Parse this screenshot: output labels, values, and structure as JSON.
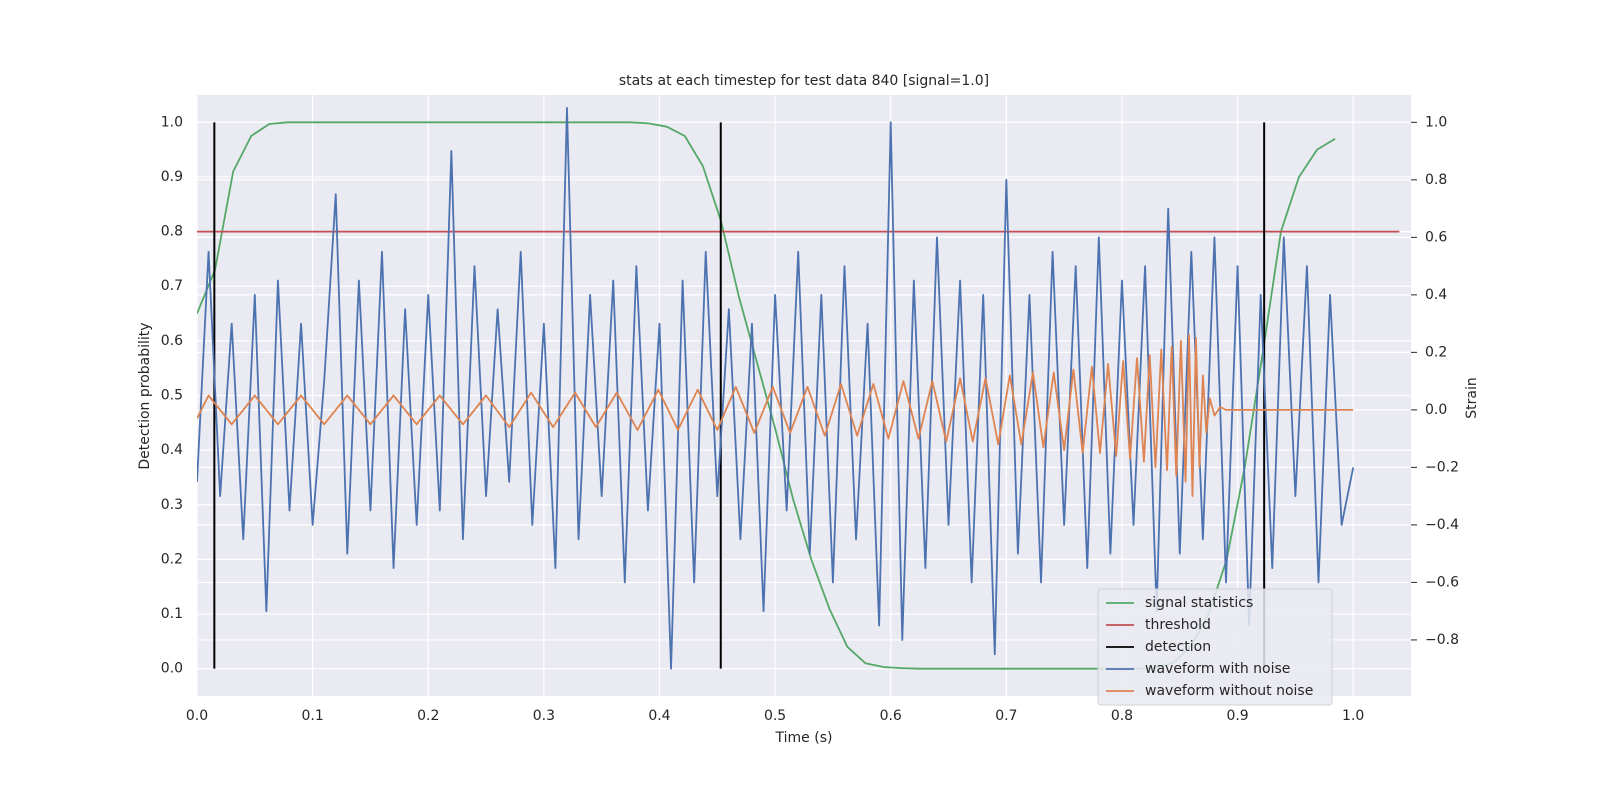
{
  "chart_data": {
    "type": "line",
    "title": "stats at each timestep for test data 840 [signal=1.0]",
    "xlabel": "Time (s)",
    "ylabel": "Detection probability",
    "y2label": "Strain",
    "xlim": [
      0,
      1.05
    ],
    "xticks": [
      {
        "value": 0,
        "label": "0.0"
      },
      0.1,
      0.2,
      0.3,
      0.4,
      0.5,
      0.6,
      0.7,
      0.8,
      0.9,
      {
        "value": 1,
        "label": "1.0"
      }
    ],
    "ylim": [
      -0.05,
      1.05
    ],
    "yticks": [
      {
        "value": 0,
        "label": "0.0"
      },
      0.1,
      0.2,
      0.3,
      0.4,
      0.5,
      0.6,
      0.7,
      0.8,
      0.9,
      {
        "value": 1,
        "label": "1.0"
      }
    ],
    "y2lim": [
      -0.995,
      1.095
    ],
    "y2ticks": [
      {
        "value": -0.8,
        "label": "−0.8"
      },
      {
        "value": -0.6,
        "label": "−0.6"
      },
      {
        "value": -0.4,
        "label": "−0.4"
      },
      {
        "value": -0.2,
        "label": "−0.2"
      },
      {
        "value": 0,
        "label": "0.0"
      },
      0.2,
      0.4,
      0.6,
      0.8,
      {
        "value": 1,
        "label": "1.0"
      }
    ],
    "grid": true,
    "legend": "lower right",
    "series": [
      {
        "name": "signal statistics",
        "color": "#55a868",
        "x": [
          0,
          0.0156,
          0.0313,
          0.0469,
          0.0625,
          0.0781,
          0.0938,
          0.1094,
          0.125,
          0.1406,
          0.1563,
          0.1719,
          0.1875,
          0.2031,
          0.2188,
          0.2344,
          0.25,
          0.2656,
          0.2813,
          0.2969,
          0.3125,
          0.3281,
          0.3438,
          0.3594,
          0.375,
          0.3906,
          0.4063,
          0.4219,
          0.4375,
          0.4531,
          0.4688,
          0.4844,
          0.5,
          0.5156,
          0.5313,
          0.5469,
          0.5625,
          0.5781,
          0.5938,
          0.6094,
          0.625,
          0.6406,
          0.6563,
          0.6719,
          0.6875,
          0.7031,
          0.7188,
          0.7344,
          0.75,
          0.7656,
          0.7813,
          0.7969,
          0.8125,
          0.8281,
          0.8438,
          0.8594,
          0.875,
          0.8906,
          0.9063,
          0.9219,
          0.9375,
          0.9531,
          0.9688,
          0.9844
        ],
        "values": [
          0.65,
          0.73,
          0.91,
          0.975,
          0.997,
          1,
          1,
          1,
          1,
          1,
          1,
          1,
          1,
          1,
          1,
          1,
          1,
          1,
          1,
          1,
          1,
          1,
          1,
          1,
          1,
          0.998,
          0.992,
          0.975,
          0.92,
          0.82,
          0.68,
          0.56,
          0.44,
          0.31,
          0.2,
          0.11,
          0.04,
          0.01,
          0.003,
          0.001,
          0,
          0,
          0,
          0,
          0,
          0,
          0,
          0,
          0,
          0,
          0,
          0,
          0,
          0.002,
          0.01,
          0.04,
          0.1,
          0.2,
          0.37,
          0.58,
          0.8,
          0.9,
          0.95,
          0.97
        ]
      },
      {
        "name": "threshold",
        "color": "#c44e52",
        "x": [
          0,
          1.04
        ],
        "values": [
          0.8,
          0.8
        ]
      },
      {
        "name": "detection",
        "color": "#000000",
        "kind": "vlines",
        "x": [
          0.015,
          0.453,
          0.923
        ],
        "ymin": [
          0,
          0,
          0
        ],
        "ymax": [
          1,
          1,
          1
        ]
      },
      {
        "name": "waveform with noise",
        "color": "#4c72b0",
        "axis": "y2",
        "x": [
          0,
          0.01,
          0.02,
          0.03,
          0.04,
          0.05,
          0.06,
          0.07,
          0.08,
          0.09,
          0.1,
          0.11,
          0.12,
          0.13,
          0.14,
          0.15,
          0.16,
          0.17,
          0.18,
          0.19,
          0.2,
          0.21,
          0.22,
          0.23,
          0.24,
          0.25,
          0.26,
          0.27,
          0.28,
          0.29,
          0.3,
          0.31,
          0.32,
          0.33,
          0.34,
          0.35,
          0.36,
          0.37,
          0.38,
          0.39,
          0.4,
          0.41,
          0.42,
          0.43,
          0.44,
          0.45,
          0.46,
          0.47,
          0.48,
          0.49,
          0.5,
          0.51,
          0.52,
          0.53,
          0.54,
          0.55,
          0.56,
          0.57,
          0.58,
          0.59,
          0.6,
          0.61,
          0.62,
          0.63,
          0.64,
          0.65,
          0.66,
          0.67,
          0.68,
          0.69,
          0.7,
          0.71,
          0.72,
          0.73,
          0.74,
          0.75,
          0.76,
          0.77,
          0.78,
          0.79,
          0.8,
          0.81,
          0.82,
          0.83,
          0.84,
          0.85,
          0.86,
          0.87,
          0.88,
          0.89,
          0.9,
          0.91,
          0.92,
          0.93,
          0.94,
          0.95,
          0.96,
          0.97,
          0.98,
          0.99,
          1
        ],
        "values": [
          -0.25,
          0.55,
          -0.3,
          0.3,
          -0.45,
          0.4,
          -0.7,
          0.45,
          -0.35,
          0.3,
          -0.4,
          0.1,
          0.75,
          -0.5,
          0.45,
          -0.35,
          0.55,
          -0.55,
          0.35,
          -0.4,
          0.4,
          -0.35,
          0.9,
          -0.45,
          0.5,
          -0.3,
          0.35,
          -0.25,
          0.55,
          -0.4,
          0.3,
          -0.55,
          1.05,
          -0.45,
          0.4,
          -0.3,
          0.45,
          -0.6,
          0.5,
          -0.35,
          0.3,
          -0.9,
          0.45,
          -0.6,
          0.55,
          -0.3,
          0.35,
          -0.45,
          0.3,
          -0.7,
          0.4,
          -0.35,
          0.55,
          -0.5,
          0.4,
          -0.6,
          0.5,
          -0.45,
          0.3,
          -0.75,
          1.0,
          -0.8,
          0.45,
          -0.55,
          0.6,
          -0.4,
          0.45,
          -0.6,
          0.4,
          -0.85,
          0.8,
          -0.5,
          0.4,
          -0.6,
          0.55,
          -0.4,
          0.5,
          -0.55,
          0.6,
          -0.5,
          0.45,
          -0.4,
          0.5,
          -0.7,
          0.7,
          -0.5,
          0.55,
          -0.45,
          0.6,
          -0.6,
          0.5,
          -0.75,
          0.4,
          -0.55,
          0.6,
          -0.3,
          0.5,
          -0.6,
          0.4,
          -0.4,
          -0.2
        ]
      },
      {
        "name": "waveform without noise",
        "color": "#dd8452",
        "axis": "y2",
        "x": [
          0,
          0.01,
          0.03,
          0.05,
          0.07,
          0.09,
          0.11,
          0.13,
          0.15,
          0.17,
          0.19,
          0.21,
          0.23,
          0.25,
          0.27,
          0.289,
          0.308,
          0.327,
          0.345,
          0.363,
          0.381,
          0.399,
          0.416,
          0.433,
          0.45,
          0.466,
          0.482,
          0.498,
          0.513,
          0.528,
          0.543,
          0.557,
          0.571,
          0.585,
          0.598,
          0.611,
          0.624,
          0.636,
          0.648,
          0.66,
          0.671,
          0.682,
          0.693,
          0.703,
          0.713,
          0.723,
          0.732,
          0.741,
          0.75,
          0.758,
          0.766,
          0.774,
          0.781,
          0.788,
          0.795,
          0.801,
          0.807,
          0.813,
          0.819,
          0.824,
          0.829,
          0.834,
          0.839,
          0.843,
          0.847,
          0.851,
          0.855,
          0.858,
          0.861,
          0.864,
          0.867,
          0.87,
          0.873,
          0.876,
          0.88,
          0.885,
          0.89,
          1
        ],
        "values": [
          -0.03,
          0.05,
          -0.05,
          0.05,
          -0.05,
          0.05,
          -0.05,
          0.05,
          -0.05,
          0.05,
          -0.05,
          0.05,
          -0.05,
          0.05,
          -0.06,
          0.06,
          -0.06,
          0.06,
          -0.06,
          0.06,
          -0.07,
          0.07,
          -0.07,
          0.07,
          -0.07,
          0.08,
          -0.08,
          0.08,
          -0.08,
          0.08,
          -0.09,
          0.09,
          -0.09,
          0.09,
          -0.1,
          0.1,
          -0.1,
          0.1,
          -0.11,
          0.11,
          -0.11,
          0.11,
          -0.12,
          0.12,
          -0.12,
          0.13,
          -0.13,
          0.13,
          -0.14,
          0.14,
          -0.15,
          0.15,
          -0.15,
          0.16,
          -0.16,
          0.17,
          -0.17,
          0.18,
          -0.18,
          0.19,
          -0.2,
          0.21,
          -0.21,
          0.22,
          -0.23,
          0.24,
          -0.25,
          0.26,
          -0.3,
          0.25,
          -0.2,
          0.12,
          -0.08,
          0.04,
          -0.02,
          0.01,
          0,
          0
        ]
      }
    ]
  }
}
